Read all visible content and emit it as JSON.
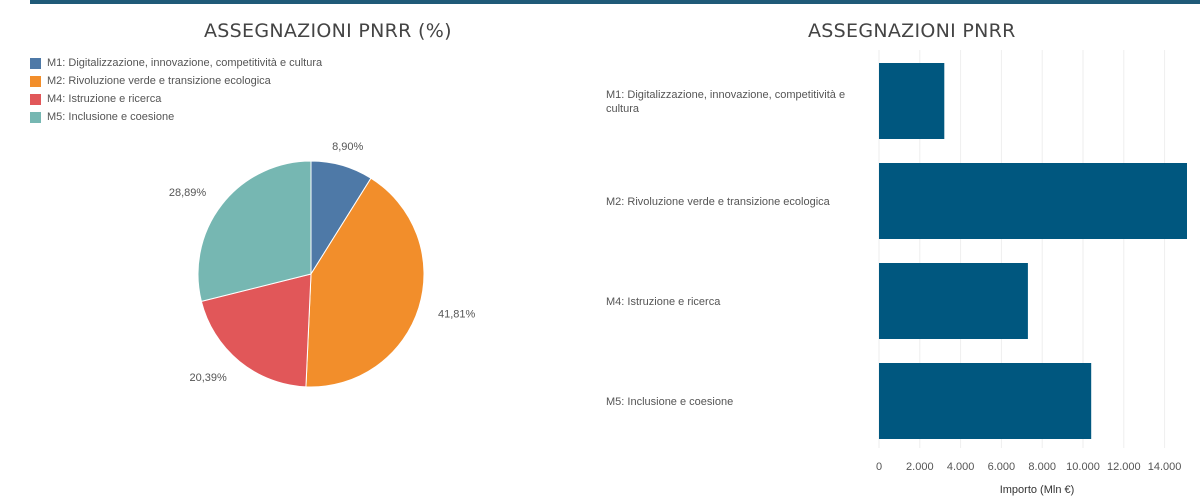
{
  "chart_data": [
    {
      "type": "pie",
      "title": "ASSEGNAZIONI PNRR (%)",
      "legend_position": "top-left",
      "slices": [
        {
          "label": "M1: Digitalizzazione, innovazione, competitività e cultura",
          "value": 8.9,
          "display": "8,90%",
          "color": "#4e79a7"
        },
        {
          "label": "M2: Rivoluzione verde e transizione ecologica",
          "value": 41.81,
          "display": "41,81%",
          "color": "#f28e2b"
        },
        {
          "label": "M4: Istruzione e ricerca",
          "value": 20.39,
          "display": "20,39%",
          "color": "#e15759"
        },
        {
          "label": "M5: Inclusione e coesione",
          "value": 28.89,
          "display": "28,89%",
          "color": "#76b7b2"
        }
      ]
    },
    {
      "type": "bar",
      "orientation": "horizontal",
      "title": "ASSEGNAZIONI PNRR",
      "xlabel": "Importo (Mln €)",
      "xlim": [
        0,
        15000
      ],
      "xticks": [
        0,
        2000,
        4000,
        6000,
        8000,
        10000,
        12000,
        14000
      ],
      "xtick_labels": [
        "0",
        "2.000",
        "4.000",
        "6.000",
        "8.000",
        "10.000",
        "12.000",
        "14.000"
      ],
      "grid": true,
      "color": "#00577f",
      "categories": [
        [
          "M1: Digitalizzazione, innovazione, competitività e",
          "cultura"
        ],
        [
          "M2: Rivoluzione verde e transizione ecologica"
        ],
        [
          "M4: Istruzione e ricerca"
        ],
        [
          "M5: Inclusione e coesione"
        ]
      ],
      "values": [
        3200,
        15100,
        7300,
        10400
      ]
    }
  ]
}
